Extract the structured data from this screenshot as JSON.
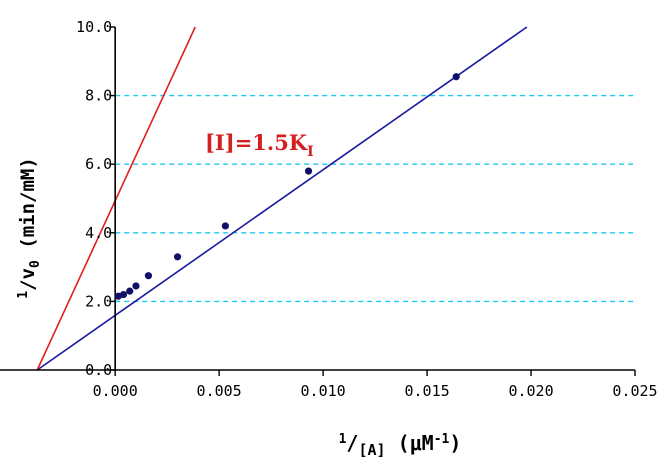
{
  "chart_data": {
    "type": "scatter",
    "xlim": [
      -0.004,
      0.025
    ],
    "ylim": [
      0,
      10
    ],
    "x_ticks": [
      "0.000",
      "0.005",
      "0.010",
      "0.015",
      "0.020",
      "0.025"
    ],
    "y_ticks": [
      "0.0",
      "2.0",
      "4.0",
      "6.0",
      "8.0",
      "10.0"
    ],
    "grid": "horizontal dashed",
    "ylabel": {
      "one": "1",
      "slash": "/",
      "v": "v",
      "sub": "0",
      "unit": " (min/mM)"
    },
    "xlabel": {
      "one": "1",
      "slash": "/",
      "bracket": "[A]",
      "unit": " (μM",
      "exp": "-1",
      "close": ")"
    },
    "annotation": {
      "main": "[I]=1.5K",
      "sub": "I",
      "color": "#d51f1f"
    },
    "series": [
      {
        "line_color": "#1a1aa0",
        "marker_color": "#10106a",
        "line": {
          "x": [
            -0.00375,
            0.0198
          ],
          "y": [
            0,
            10
          ]
        },
        "points": [
          {
            "x": 0.00015,
            "y": 2.15
          },
          {
            "x": 0.0004,
            "y": 2.2
          },
          {
            "x": 0.0007,
            "y": 2.3
          },
          {
            "x": 0.001,
            "y": 2.45
          },
          {
            "x": 0.0016,
            "y": 2.75
          },
          {
            "x": 0.003,
            "y": 3.3
          },
          {
            "x": 0.0053,
            "y": 4.2
          },
          {
            "x": 0.0093,
            "y": 5.8
          },
          {
            "x": 0.0164,
            "y": 8.55
          }
        ]
      },
      {
        "line_color": "#e02020",
        "line": {
          "x": [
            -0.00375,
            0.00385
          ],
          "y": [
            0,
            10
          ]
        },
        "points": []
      }
    ]
  }
}
